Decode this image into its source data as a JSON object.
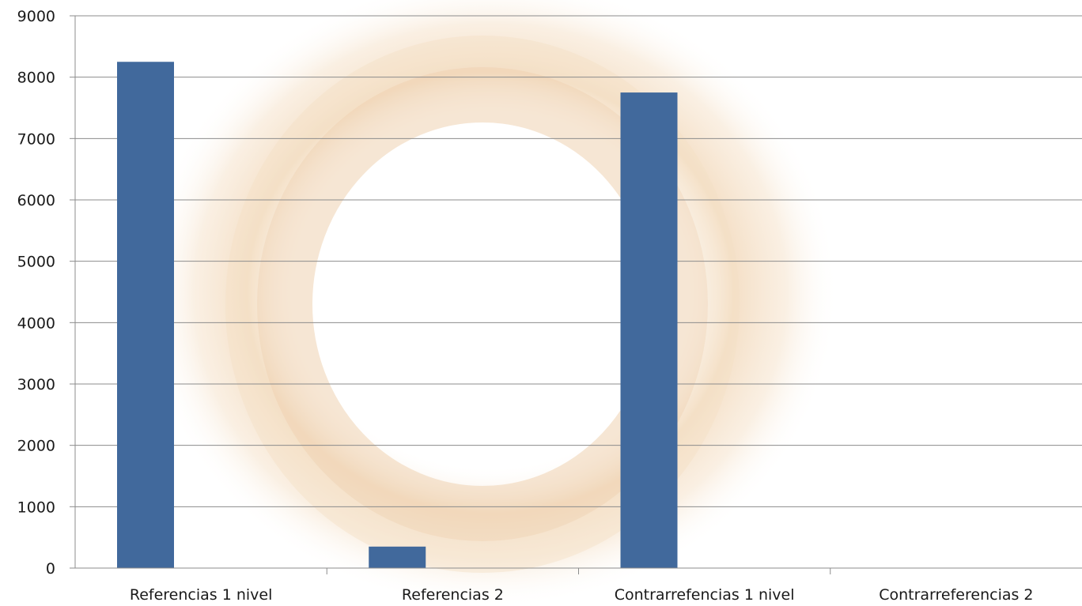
{
  "chart_data": {
    "type": "bar",
    "title": "",
    "xlabel": "",
    "ylabel": "",
    "categories": [
      "Referencias 1 nivel",
      "Referencias 2",
      "Contrarrefencias 1 nivel",
      "Contrarreferencias 2"
    ],
    "values": [
      8250,
      350,
      7750,
      0
    ],
    "ylim": [
      0,
      9000
    ],
    "yticks": [
      "0",
      "1000",
      "2000",
      "3000",
      "4000",
      "5000",
      "6000",
      "7000",
      "8000",
      "9000"
    ],
    "grid": true,
    "legend": "none",
    "colors": {
      "bar": "#41699c",
      "grid": "#8c8c8c",
      "axis": "#8c8c8c",
      "background_art": "#f3dcc0"
    }
  }
}
